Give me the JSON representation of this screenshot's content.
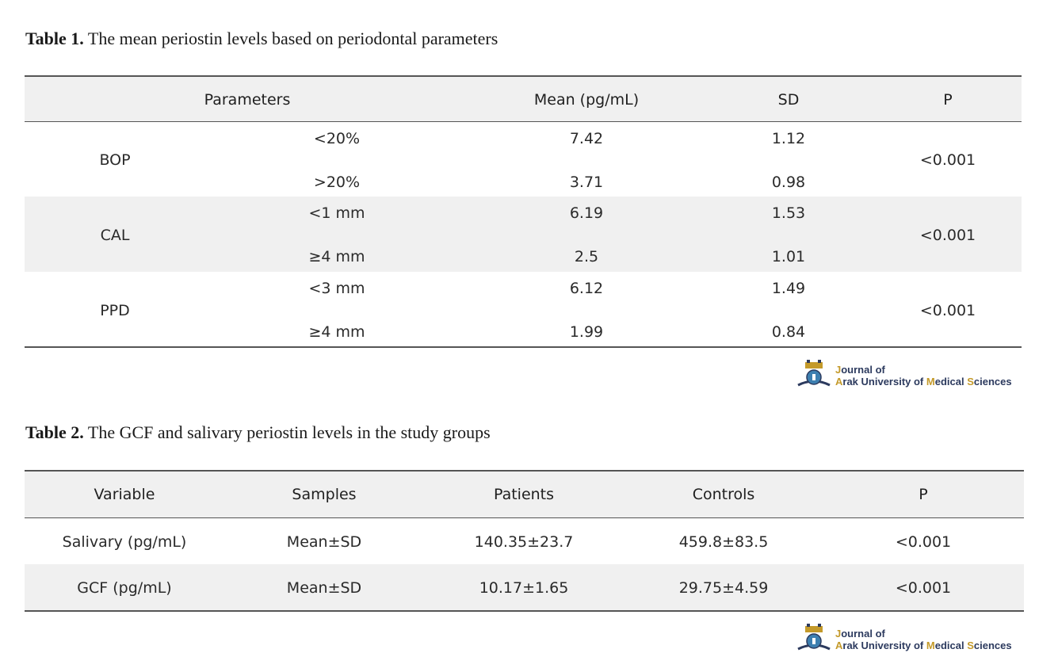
{
  "table1": {
    "caption_bold": "Table 1.",
    "caption_text": "The mean periostin levels based on periodontal parameters",
    "headers": [
      "Parameters",
      "Mean (pg/mL)",
      "SD",
      "P"
    ],
    "groups": [
      {
        "name": "BOP",
        "p": "<0.001",
        "rows": [
          {
            "sub": "<20%",
            "mean": "7.42",
            "sd": "1.12"
          },
          {
            "sub": ">20%",
            "mean": "3.71",
            "sd": "0.98"
          }
        ]
      },
      {
        "name": "CAL",
        "p": "<0.001",
        "rows": [
          {
            "sub": "<1 mm",
            "mean": "6.19",
            "sd": "1.53"
          },
          {
            "sub": "≥4 mm",
            "mean": "2.5",
            "sd": "1.01"
          }
        ]
      },
      {
        "name": "PPD",
        "p": "<0.001",
        "rows": [
          {
            "sub": "<3 mm",
            "mean": "6.12",
            "sd": "1.49"
          },
          {
            "sub": "≥4 mm",
            "mean": "1.99",
            "sd": "0.84"
          }
        ]
      }
    ]
  },
  "table2": {
    "caption_bold": "Table 2.",
    "caption_text": "The GCF and salivary periostin levels in the study groups",
    "headers": [
      "Variable",
      "Samples",
      "Patients",
      "Controls",
      "P"
    ],
    "rows": [
      {
        "variable": "Salivary (pg/mL)",
        "samples": "Mean±SD",
        "patients": "140.35±23.7",
        "controls": "459.8±83.5",
        "p": "<0.001"
      },
      {
        "variable": "GCF (pg/mL)",
        "samples": "Mean±SD",
        "patients": "10.17±1.65",
        "controls": "29.75±4.59",
        "p": "<0.001"
      }
    ]
  },
  "logo": {
    "line1_j": "J",
    "line1_rest": "ournal of",
    "line2_a": "A",
    "line2_b": "rak University of ",
    "line2_m": "M",
    "line2_c": "edical ",
    "line2_s": "S",
    "line2_d": "ciences",
    "icon": "journal-emblem-icon"
  }
}
